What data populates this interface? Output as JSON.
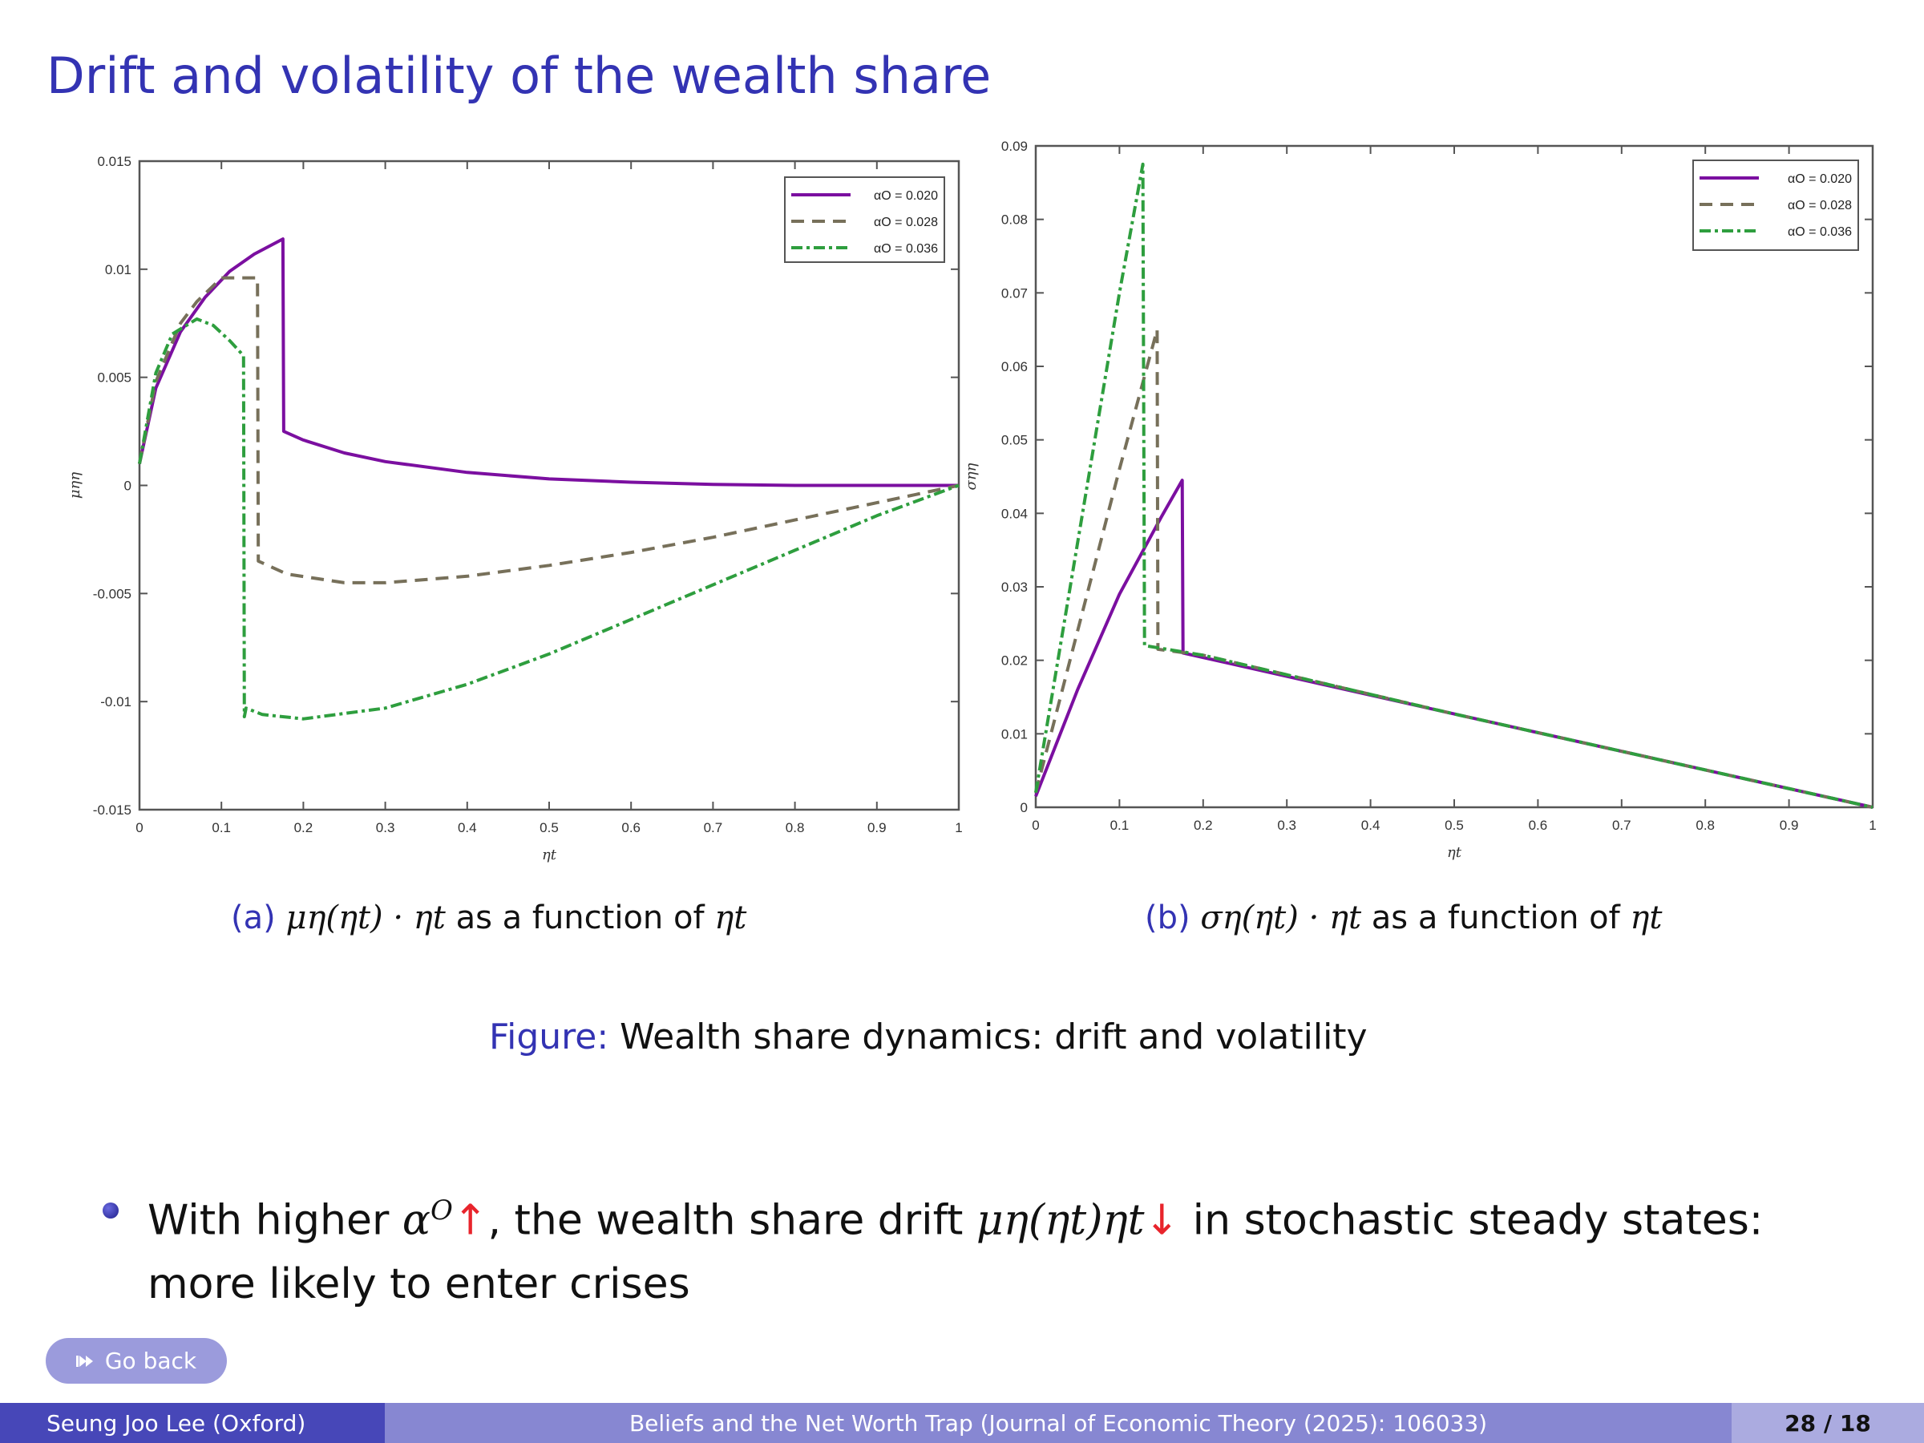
{
  "slide": {
    "title": "Drift and volatility of the wealth share",
    "caption_a": {
      "label": "(a)",
      "math": "μη(ηt) · ηt",
      "text": " as a function of ",
      "var": "ηt"
    },
    "caption_b": {
      "label": "(b)",
      "math": "ση(ηt) · ηt",
      "text": " as a function of ",
      "var": "ηt"
    },
    "figure_caption": {
      "label": "Figure:",
      "text": " Wealth share dynamics: drift and volatility"
    },
    "bullet": {
      "part1": "With higher ",
      "alpha": "α",
      "alpha_sup": "O",
      "up_arrow": "↑",
      "part2": ", the wealth share drift ",
      "drift_math": "μη(ηt)ηt",
      "down_arrow": "↓",
      "part3": " in stochastic steady states: more likely to enter crises"
    },
    "go_back_label": "Go back",
    "go_back_icon": "double-arrow-right-icon",
    "footer": {
      "author": "Seung Joo Lee (Oxford)",
      "paper": "Beliefs and the Net Worth Trap (Journal of Economic Theory (2025): 106033)",
      "page": "28 / 18"
    },
    "colors": {
      "title": "#3333b3",
      "accent_arrow": "#e8242c",
      "series": [
        "#7b0fa0",
        "#77705a",
        "#2e9e3e"
      ]
    }
  },
  "chart_data": [
    {
      "type": "line",
      "title": "(a) μη(ηt) · ηt as a function of ηt",
      "xlabel": "ηt",
      "ylabel": "μηη",
      "xlim": [
        0,
        1
      ],
      "ylim": [
        -0.015,
        0.015
      ],
      "xticks": [
        "0",
        "0.1",
        "0.2",
        "0.3",
        "0.4",
        "0.5",
        "0.6",
        "0.7",
        "0.8",
        "0.9",
        "1"
      ],
      "yticks": [
        "-0.015",
        "-0.01",
        "-0.005",
        "0",
        "0.005",
        "0.01",
        "0.015"
      ],
      "legend_position": "upper right",
      "legend": [
        "αO = 0.020",
        "αO = 0.028",
        "αO = 0.036"
      ],
      "series": [
        {
          "name": "αO = 0.020",
          "style": "solid",
          "points": [
            [
              0,
              0.001
            ],
            [
              0.02,
              0.0045
            ],
            [
              0.05,
              0.0071
            ],
            [
              0.08,
              0.0087
            ],
            [
              0.11,
              0.0099
            ],
            [
              0.14,
              0.0107
            ],
            [
              0.175,
              0.0114
            ],
            [
              0.176,
              0.0025
            ],
            [
              0.2,
              0.0021
            ],
            [
              0.25,
              0.0015
            ],
            [
              0.3,
              0.0011
            ],
            [
              0.4,
              0.0006
            ],
            [
              0.5,
              0.0003
            ],
            [
              0.6,
              0.00015
            ],
            [
              0.7,
              5e-05
            ],
            [
              0.8,
              0.0
            ],
            [
              1.0,
              0.0
            ]
          ]
        },
        {
          "name": "αO = 0.028",
          "style": "dashed",
          "points": [
            [
              0,
              0.001
            ],
            [
              0.02,
              0.0048
            ],
            [
              0.05,
              0.0075
            ],
            [
              0.07,
              0.0085
            ],
            [
              0.1,
              0.0096
            ],
            [
              0.144,
              0.0096
            ],
            [
              0.145,
              -0.0035
            ],
            [
              0.18,
              -0.0041
            ],
            [
              0.25,
              -0.0045
            ],
            [
              0.3,
              -0.0045
            ],
            [
              0.4,
              -0.0042
            ],
            [
              0.5,
              -0.0037
            ],
            [
              0.6,
              -0.0031
            ],
            [
              0.7,
              -0.0024
            ],
            [
              0.8,
              -0.0016
            ],
            [
              0.9,
              -0.0008
            ],
            [
              1.0,
              0.0
            ]
          ]
        },
        {
          "name": "αO = 0.036",
          "style": "dashdot",
          "points": [
            [
              0,
              0.001
            ],
            [
              0.02,
              0.0052
            ],
            [
              0.04,
              0.007
            ],
            [
              0.07,
              0.0077
            ],
            [
              0.09,
              0.0074
            ],
            [
              0.11,
              0.0067
            ],
            [
              0.127,
              0.006
            ],
            [
              0.128,
              -0.0107
            ],
            [
              0.13,
              -0.0103
            ],
            [
              0.15,
              -0.0106
            ],
            [
              0.2,
              -0.0108
            ],
            [
              0.3,
              -0.0103
            ],
            [
              0.4,
              -0.0092
            ],
            [
              0.5,
              -0.0078
            ],
            [
              0.6,
              -0.0062
            ],
            [
              0.7,
              -0.0046
            ],
            [
              0.8,
              -0.003
            ],
            [
              0.9,
              -0.0014
            ],
            [
              1.0,
              0.0
            ]
          ]
        }
      ]
    },
    {
      "type": "line",
      "title": "(b) ση(ηt) · ηt as a function of ηt",
      "xlabel": "ηt",
      "ylabel": "σηη",
      "xlim": [
        0,
        1
      ],
      "ylim": [
        0,
        0.09
      ],
      "xticks": [
        "0",
        "0.1",
        "0.2",
        "0.3",
        "0.4",
        "0.5",
        "0.6",
        "0.7",
        "0.8",
        "0.9",
        "1"
      ],
      "yticks": [
        "0",
        "0.01",
        "0.02",
        "0.03",
        "0.04",
        "0.05",
        "0.06",
        "0.07",
        "0.08",
        "0.09"
      ],
      "legend_position": "upper right",
      "legend": [
        "αO = 0.020",
        "αO = 0.028",
        "αO = 0.036"
      ],
      "series": [
        {
          "name": "αO = 0.020",
          "style": "solid",
          "points": [
            [
              0,
              0.0015
            ],
            [
              0.05,
              0.016
            ],
            [
              0.1,
              0.029
            ],
            [
              0.15,
              0.0395
            ],
            [
              0.175,
              0.0445
            ],
            [
              0.176,
              0.021
            ],
            [
              0.5,
              0.0127
            ],
            [
              1.0,
              0.0
            ]
          ]
        },
        {
          "name": "αO = 0.028",
          "style": "dashed",
          "points": [
            [
              0,
              0.002
            ],
            [
              0.05,
              0.024
            ],
            [
              0.1,
              0.046
            ],
            [
              0.145,
              0.065
            ],
            [
              0.146,
              0.0215
            ],
            [
              0.2,
              0.0207
            ],
            [
              0.5,
              0.0127
            ],
            [
              1.0,
              0.0
            ]
          ]
        },
        {
          "name": "αO = 0.036",
          "style": "dashdot",
          "points": [
            [
              0,
              0.002
            ],
            [
              0.05,
              0.036
            ],
            [
              0.1,
              0.07
            ],
            [
              0.128,
              0.0875
            ],
            [
              0.13,
              0.022
            ],
            [
              0.2,
              0.0207
            ],
            [
              0.5,
              0.0127
            ],
            [
              1.0,
              0.0
            ]
          ]
        }
      ]
    }
  ]
}
